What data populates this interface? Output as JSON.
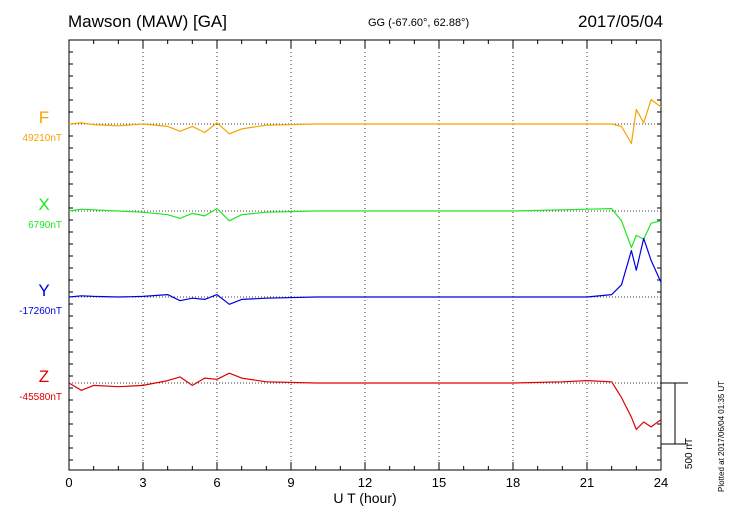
{
  "header": {
    "station": "Mawson (MAW)  [GA]",
    "coords": "GG (-67.60°,  62.88°)",
    "date": "2017/05/04"
  },
  "footer": {
    "plotted": "Plotted at 2017/06/04 01:35 UT"
  },
  "chart_data": {
    "type": "line",
    "title": "Mawson (MAW)  [GA]",
    "xlabel": "U T (hour)",
    "xlim": [
      0,
      24
    ],
    "x_ticks": [
      0,
      3,
      6,
      9,
      12,
      15,
      18,
      21,
      24
    ],
    "scale_bar": {
      "label": "500 nT",
      "value_nT": 500
    },
    "grid": "vertical dotted at 3-hour intervals",
    "series": [
      {
        "name": "F",
        "baseline_label": "49210nT",
        "color": "#f5a300",
        "x": [
          0,
          0.5,
          1,
          2,
          3,
          4,
          4.5,
          5,
          5.5,
          6,
          6.5,
          7,
          8,
          10,
          12,
          14,
          16,
          18,
          20,
          21,
          22,
          22.4,
          22.8,
          23,
          23.3,
          23.6,
          24
        ],
        "y": [
          0,
          10,
          -5,
          -15,
          0,
          -20,
          -60,
          -20,
          -70,
          10,
          -80,
          -40,
          -10,
          0,
          0,
          0,
          0,
          0,
          0,
          0,
          0,
          -20,
          -160,
          120,
          10,
          200,
          140
        ]
      },
      {
        "name": "X",
        "baseline_label": "6790nT",
        "color": "#1ee81e",
        "x": [
          0,
          0.5,
          1,
          2,
          3,
          4,
          4.5,
          5,
          5.5,
          6,
          6.5,
          7,
          8,
          10,
          12,
          14,
          16,
          18,
          20,
          21,
          22,
          22.4,
          22.8,
          23,
          23.3,
          23.6,
          24
        ],
        "y": [
          0,
          15,
          10,
          0,
          -10,
          -30,
          -60,
          -20,
          -40,
          20,
          -80,
          -30,
          -10,
          0,
          0,
          0,
          0,
          0,
          10,
          15,
          20,
          -80,
          -300,
          -200,
          -230,
          -100,
          -80
        ]
      },
      {
        "name": "Y",
        "baseline_label": "-17260nT",
        "color": "#0000e0",
        "x": [
          0,
          0.5,
          1,
          2,
          3,
          4,
          4.5,
          5,
          5.5,
          6,
          6.5,
          7,
          8,
          10,
          12,
          14,
          16,
          18,
          20,
          21,
          22,
          22.4,
          22.8,
          23,
          23.3,
          23.6,
          24
        ],
        "y": [
          0,
          10,
          5,
          0,
          5,
          20,
          -30,
          -10,
          -20,
          20,
          -60,
          -20,
          -10,
          0,
          0,
          0,
          0,
          0,
          0,
          0,
          20,
          100,
          380,
          220,
          480,
          300,
          120
        ]
      },
      {
        "name": "Z",
        "baseline_label": "-45580nT",
        "color": "#e00000",
        "x": [
          0,
          0.5,
          1,
          2,
          3,
          4,
          4.5,
          5,
          5.5,
          6,
          6.5,
          7,
          8,
          10,
          12,
          14,
          16,
          18,
          20,
          21,
          22,
          22.4,
          22.8,
          23,
          23.3,
          23.6,
          24
        ],
        "y": [
          0,
          -60,
          -20,
          -30,
          -20,
          20,
          50,
          -20,
          40,
          30,
          80,
          40,
          10,
          0,
          0,
          0,
          0,
          0,
          10,
          20,
          10,
          -120,
          -280,
          -380,
          -320,
          -360,
          -300
        ]
      }
    ]
  }
}
